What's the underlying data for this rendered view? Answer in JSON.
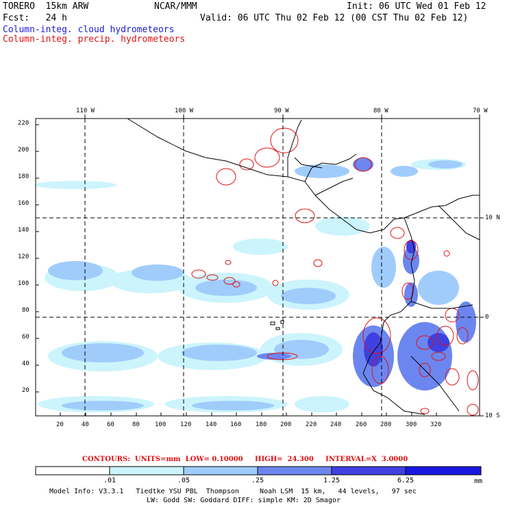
{
  "header": {
    "left_line1": "TORERO  15km ARW",
    "center_line1": "NCAR/MMM",
    "init": "Init: 06 UTC Wed 01 Feb 12",
    "left_line2": "Fcst:   24 h",
    "valid": "Valid: 06 UTC Thu 02 Feb 12 (00 CST Thu 02 Feb 12)",
    "field1": "Column-integ. cloud hydrometeors",
    "field2": "Column-integ. precip. hydrometeors"
  },
  "map": {
    "top_lon_labels": [
      "110 W",
      "100 W",
      "90 W",
      "80 W",
      "70 W"
    ],
    "right_lat_labels": [
      "10 N",
      "0",
      "10 S"
    ],
    "y_ticks": [
      "220",
      "200",
      "180",
      "160",
      "140",
      "120",
      "100",
      "80",
      "60",
      "40",
      "20"
    ],
    "x_ticks": [
      "20",
      "40",
      "60",
      "80",
      "100",
      "120",
      "140",
      "160",
      "180",
      "200",
      "220",
      "240",
      "260",
      "280",
      "300",
      "320"
    ]
  },
  "contours": "CONTOURS:  UNITS=mm  LOW= 0.10000     HIGH=  24.300     INTERVAL=X  3.0000",
  "colorbar": {
    "labels": [
      ".01",
      ".05",
      ".25",
      "1.25",
      "6.25"
    ],
    "unit": "mm",
    "colors": [
      "#ffffff",
      "#ccf4fc",
      "#a0ccfc",
      "#6c86f0",
      "#4040e0",
      "#1818e0"
    ]
  },
  "model_info": {
    "line1": "Model Info: V3.3.1   Tiedtke YSU PBL  Thompson     Noah LSM  15 km,   44 levels,   97 sec",
    "line2": "LW: Godd SW: Goddard DIFF: simple KM: 2D Smagor"
  }
}
